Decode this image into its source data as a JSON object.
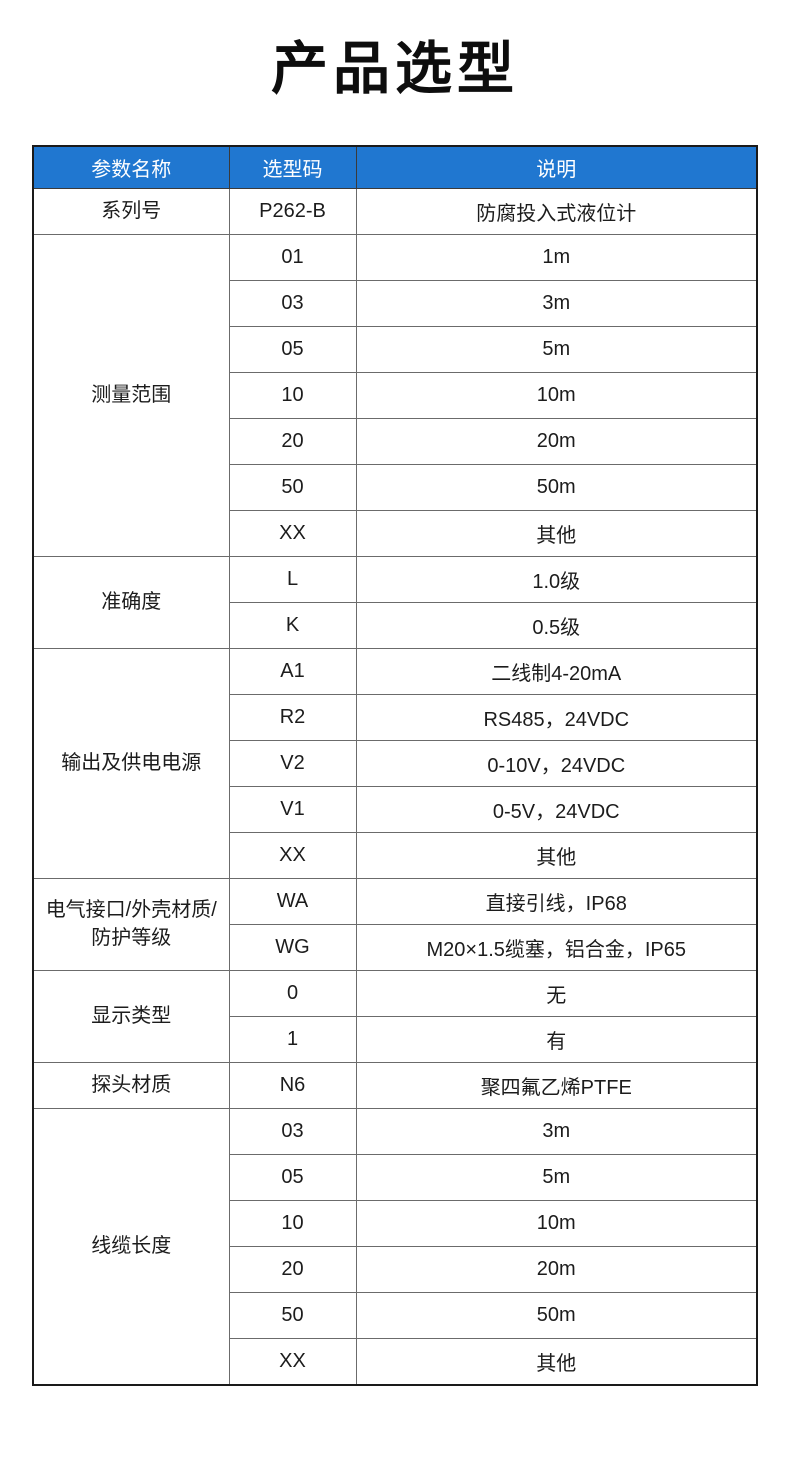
{
  "page": {
    "title": "产品选型",
    "background_color": "#ffffff"
  },
  "table": {
    "accent_color": "#2077D0",
    "header_text_color": "#ffffff",
    "header": {
      "col_param": "参数名称",
      "col_code": "选型码",
      "col_desc": "说明"
    },
    "sections": [
      {
        "param": "系列号",
        "rows": [
          {
            "code": "P262-B",
            "desc": "防腐投入式液位计"
          }
        ]
      },
      {
        "param": "测量范围",
        "rows": [
          {
            "code": "01",
            "desc": "1m"
          },
          {
            "code": "03",
            "desc": "3m"
          },
          {
            "code": "05",
            "desc": "5m"
          },
          {
            "code": "10",
            "desc": "10m"
          },
          {
            "code": "20",
            "desc": "20m"
          },
          {
            "code": "50",
            "desc": "50m"
          },
          {
            "code": "XX",
            "desc": "其他"
          }
        ]
      },
      {
        "param": "准确度",
        "rows": [
          {
            "code": "L",
            "desc": "1.0级"
          },
          {
            "code": "K",
            "desc": "0.5级"
          }
        ]
      },
      {
        "param": "输出及供电电源",
        "rows": [
          {
            "code": "A1",
            "desc": "二线制4-20mA"
          },
          {
            "code": "R2",
            "desc": "RS485，24VDC"
          },
          {
            "code": "V2",
            "desc": "0-10V，24VDC"
          },
          {
            "code": "V1",
            "desc": "0-5V，24VDC"
          },
          {
            "code": "XX",
            "desc": "其他"
          }
        ]
      },
      {
        "param": "电气接口/外壳材质/\n防护等级",
        "rows": [
          {
            "code": "WA",
            "desc": "直接引线，IP68"
          },
          {
            "code": "WG",
            "desc": "M20×1.5缆塞，铝合金，IP65"
          }
        ]
      },
      {
        "param": "显示类型",
        "rows": [
          {
            "code": "0",
            "desc": "无"
          },
          {
            "code": "1",
            "desc": "有"
          }
        ]
      },
      {
        "param": "探头材质",
        "rows": [
          {
            "code": "N6",
            "desc": "聚四氟乙烯PTFE"
          }
        ]
      },
      {
        "param": "线缆长度",
        "rows": [
          {
            "code": "03",
            "desc": "3m"
          },
          {
            "code": "05",
            "desc": "5m"
          },
          {
            "code": "10",
            "desc": "10m"
          },
          {
            "code": "20",
            "desc": "20m"
          },
          {
            "code": "50",
            "desc": "50m"
          },
          {
            "code": "XX",
            "desc": "其他"
          }
        ]
      }
    ]
  }
}
